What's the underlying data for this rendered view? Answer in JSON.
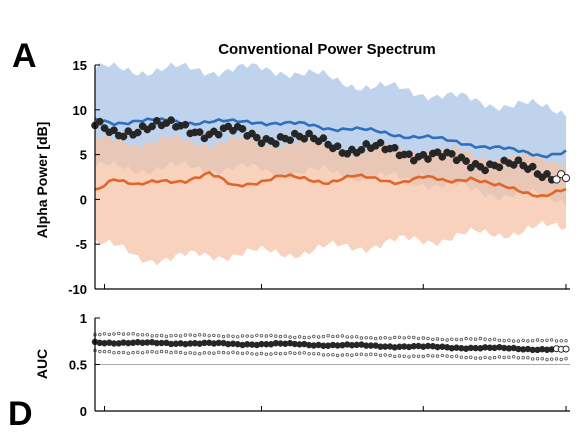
{
  "figure": {
    "panel_top_letter": "A",
    "panel_bottom_letter": "D"
  },
  "chart_data": [
    {
      "type": "line",
      "title": "Conventional Power Spectrum",
      "xlabel": "",
      "ylabel": "Alpha Power [dB]",
      "ylim": [
        -10,
        15
      ],
      "yticks": [
        -10,
        -5,
        0,
        5,
        10,
        15
      ],
      "x_range": [
        1,
        100
      ],
      "xticks": [
        3,
        36,
        70,
        100
      ],
      "x_tick_labels_shown": false,
      "grid": false,
      "colors": {
        "blue_line": "#2f6fc0",
        "blue_band": "#a9c6e6",
        "orange_line": "#e0662a",
        "orange_band": "#f6c3a6",
        "dots": "#262626"
      },
      "series": [
        {
          "kind": "band",
          "color_key": "blue_band",
          "x": [
            1,
            10,
            20,
            30,
            40,
            50,
            60,
            70,
            80,
            90,
            100
          ],
          "upper": [
            14.5,
            14.5,
            14.5,
            14.5,
            14.5,
            13.5,
            12.5,
            12,
            11,
            10.5,
            10
          ],
          "lower": [
            3.5,
            3.5,
            3.5,
            3.5,
            3,
            3,
            2.5,
            2,
            1,
            0.5,
            0
          ]
        },
        {
          "kind": "band",
          "color_key": "orange_band",
          "x": [
            1,
            10,
            20,
            30,
            40,
            50,
            60,
            70,
            80,
            90,
            100
          ],
          "upper": [
            6.5,
            6.5,
            6.5,
            6.5,
            6.5,
            6,
            5.5,
            5.5,
            5,
            4.5,
            4.5
          ],
          "lower": [
            -4.5,
            -6.5,
            -6.5,
            -6,
            -6,
            -5.5,
            -5,
            -4.5,
            -4,
            -3.5,
            -3
          ]
        },
        {
          "kind": "line",
          "color_key": "blue_line",
          "x": [
            1,
            5,
            10,
            15,
            20,
            25,
            30,
            35,
            40,
            45,
            50,
            55,
            60,
            65,
            70,
            75,
            80,
            85,
            90,
            95,
            100
          ],
          "values": [
            8.8,
            8.6,
            8.8,
            8.7,
            8.6,
            8.7,
            8.6,
            8.7,
            8.5,
            8.3,
            8.0,
            7.9,
            7.5,
            7.2,
            7.0,
            6.5,
            6.2,
            5.8,
            5.3,
            5.0,
            5.3
          ]
        },
        {
          "kind": "line",
          "color_key": "orange_line",
          "x": [
            1,
            5,
            10,
            15,
            20,
            25,
            30,
            35,
            40,
            45,
            50,
            55,
            60,
            65,
            70,
            75,
            80,
            85,
            90,
            95,
            100
          ],
          "values": [
            1.0,
            2.5,
            1.5,
            2.0,
            2.2,
            2.8,
            1.5,
            2.0,
            2.5,
            2.3,
            2.0,
            2.5,
            2.3,
            2.0,
            2.4,
            2.0,
            2.5,
            1.5,
            1.0,
            0.5,
            1.0
          ]
        },
        {
          "kind": "dots",
          "color_key": "dots",
          "x": [
            1,
            5,
            10,
            15,
            20,
            25,
            30,
            35,
            40,
            45,
            50,
            55,
            60,
            65,
            70,
            75,
            80,
            85,
            90,
            95,
            100
          ],
          "values": [
            8.0,
            7.5,
            8.0,
            8.0,
            8.2,
            7.5,
            7.5,
            7.0,
            7.0,
            6.5,
            6.5,
            5.5,
            5.5,
            5.5,
            5.0,
            4.5,
            4.2,
            4.0,
            3.5,
            3.0,
            2.8
          ]
        }
      ]
    },
    {
      "type": "line",
      "title": "",
      "xlabel": "",
      "ylabel": "AUC",
      "ylim": [
        0,
        1
      ],
      "yticks": [
        0,
        0.5,
        1
      ],
      "ytick_labels": [
        "0",
        "0.5",
        "1"
      ],
      "x_range": [
        1,
        100
      ],
      "xticks": [
        3,
        36,
        70,
        100
      ],
      "x_tick_labels_shown": false,
      "reference_line": 0.5,
      "grid": false,
      "colors": {
        "dots": "#262626",
        "ci": "#555555",
        "reference": "#aaaaaa"
      },
      "series": [
        {
          "kind": "dots",
          "color_key": "dots",
          "x": [
            1,
            10,
            20,
            30,
            40,
            50,
            60,
            70,
            80,
            90,
            100
          ],
          "values": [
            0.74,
            0.73,
            0.73,
            0.72,
            0.72,
            0.71,
            0.7,
            0.69,
            0.68,
            0.67,
            0.66
          ],
          "ci_upper": [
            0.83,
            0.82,
            0.81,
            0.81,
            0.8,
            0.8,
            0.79,
            0.78,
            0.77,
            0.76,
            0.75
          ],
          "ci_lower": [
            0.64,
            0.63,
            0.63,
            0.62,
            0.62,
            0.61,
            0.6,
            0.59,
            0.58,
            0.57,
            0.56
          ]
        }
      ]
    }
  ]
}
